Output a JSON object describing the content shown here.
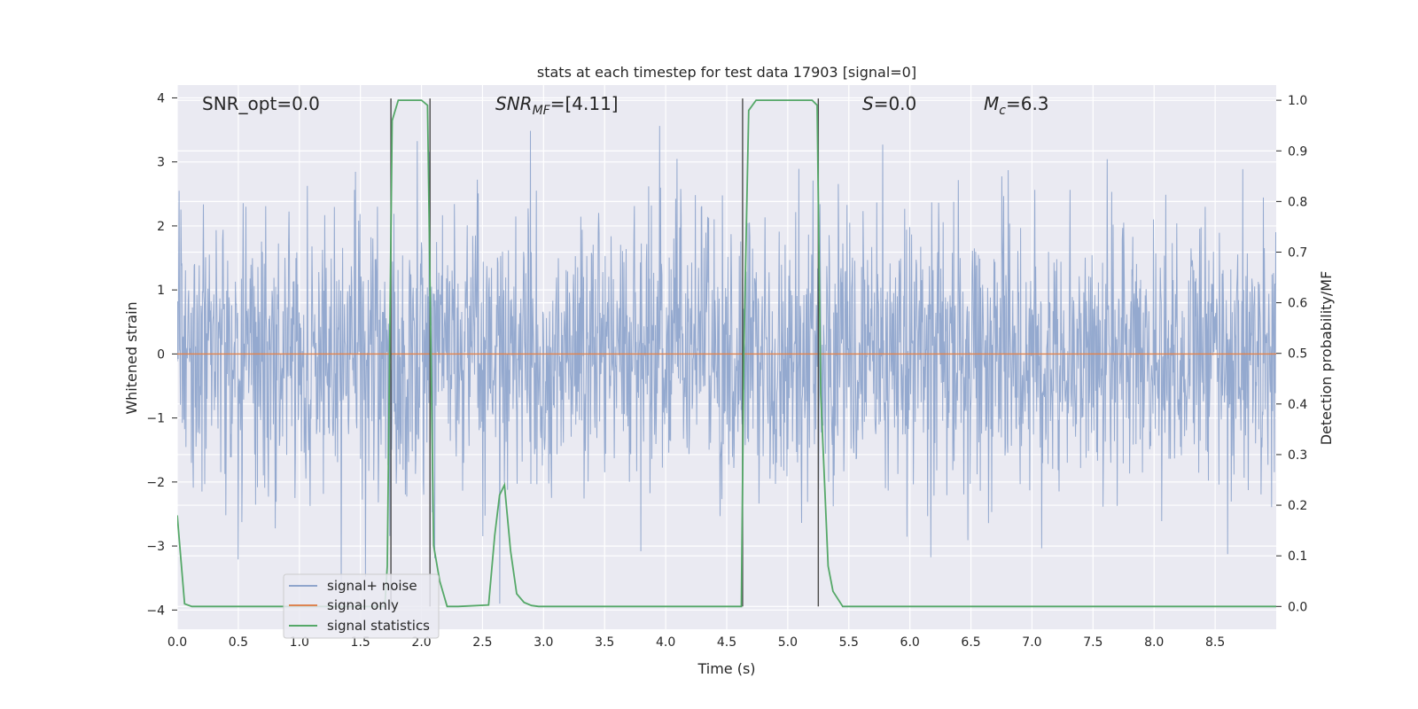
{
  "chart_data": {
    "type": "line",
    "title": "stats at each timestep for test data 17903 [signal=0]",
    "xlabel": "Time (s)",
    "ylabel_left": "Whitened strain",
    "ylabel_right": "Detection probability/MF",
    "xlim": [
      0,
      9.0
    ],
    "ylim_left": [
      -4.3,
      4.2
    ],
    "ylim_right": [
      -0.045,
      1.03
    ],
    "x_ticks": [
      "0.0",
      "0.5",
      "1.0",
      "1.5",
      "2.0",
      "2.5",
      "3.0",
      "3.5",
      "4.0",
      "4.5",
      "5.0",
      "5.5",
      "6.0",
      "6.5",
      "7.0",
      "7.5",
      "8.0",
      "8.5"
    ],
    "y_ticks_left": [
      "4",
      "3",
      "2",
      "1",
      "0",
      "−1",
      "−2",
      "−3",
      "−4"
    ],
    "y_ticks_right": [
      "1.0",
      "0.9",
      "0.8",
      "0.7",
      "0.6",
      "0.5",
      "0.4",
      "0.3",
      "0.2",
      "0.1",
      "0.0"
    ],
    "grid": true,
    "legend_position": "lower-left",
    "annotations": {
      "snr_opt": "SNR_opt=0.0",
      "snr_mf_main": "SNR",
      "snr_mf_sub": "MF",
      "snr_mf_rest": "=[4.11]",
      "s_main": "S",
      "s_rest": "=0.0",
      "mc_main": "M",
      "mc_sub": "c",
      "mc_rest": "=6.3"
    },
    "vertical_markers": [
      1.75,
      2.07,
      4.63,
      5.25
    ],
    "series": [
      {
        "name": "signal+ noise",
        "color": "#8fa5cc",
        "description_note": "",
        "values": [],
        "noise_scale": 1.0
      },
      {
        "name": "signal only",
        "color": "#dd8452",
        "x": [
          0,
          9.0
        ],
        "y": [
          0,
          0
        ]
      },
      {
        "name": "signal statistics",
        "color": "#55a868",
        "axis": "right",
        "x": [
          0.0,
          0.06,
          0.12,
          1.7,
          1.72,
          1.76,
          1.81,
          2.0,
          2.05,
          2.1,
          2.15,
          2.21,
          2.3,
          2.55,
          2.6,
          2.64,
          2.68,
          2.73,
          2.78,
          2.84,
          2.9,
          2.96,
          3.5,
          4.62,
          4.64,
          4.68,
          4.74,
          4.8,
          5.2,
          5.24,
          5.27,
          5.33,
          5.37,
          5.45,
          6.0,
          9.0
        ],
        "y": [
          0.18,
          0.005,
          0.0,
          0.0,
          0.08,
          0.96,
          1.0,
          1.0,
          0.99,
          0.12,
          0.05,
          0.0,
          0.0,
          0.003,
          0.14,
          0.22,
          0.24,
          0.11,
          0.025,
          0.008,
          0.002,
          0.0,
          0.0,
          0.0,
          0.5,
          0.98,
          1.0,
          1.0,
          1.0,
          0.99,
          0.42,
          0.08,
          0.03,
          0.0,
          0.0,
          0.0
        ]
      }
    ]
  }
}
